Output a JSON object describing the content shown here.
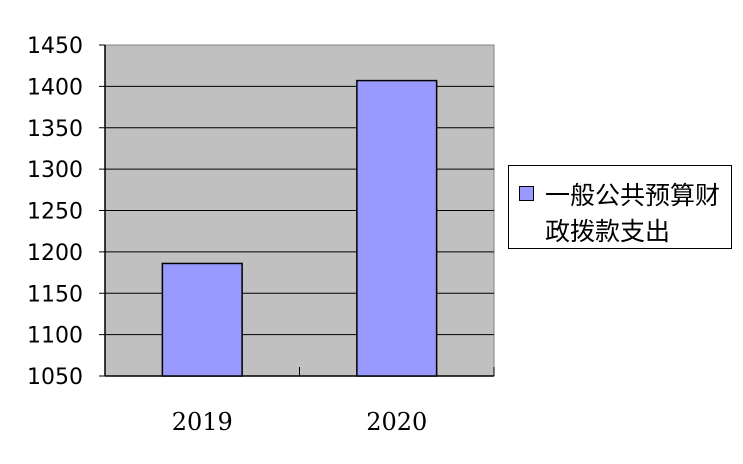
{
  "chart_data": {
    "type": "bar",
    "categories": [
      "2019",
      "2020"
    ],
    "series": [
      {
        "name": "一般公共预算财政拨款支出",
        "values": [
          1186,
          1407
        ],
        "color": "#9999ff"
      }
    ],
    "title": "",
    "xlabel": "",
    "ylabel": "",
    "ylim": [
      1050,
      1450
    ],
    "yticks": [
      "1050",
      "1100",
      "1150",
      "1200",
      "1250",
      "1300",
      "1350",
      "1400",
      "1450"
    ],
    "grid": true,
    "plot_background": "#c0c0c0",
    "legend_position": "right"
  }
}
